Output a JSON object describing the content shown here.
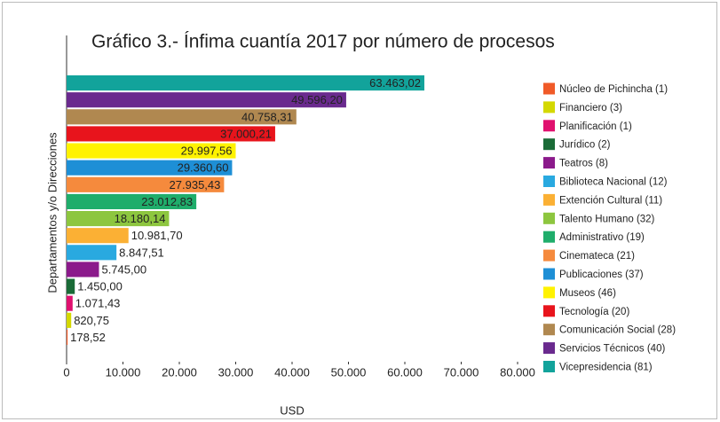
{
  "chart_data": {
    "type": "barh",
    "title": "Gráfico 3.- Ínfima cuantía 2017 por número de procesos",
    "xlabel": "USD",
    "ylabel": "Departamentos y/o Direcciones",
    "categories": [
      "Núcleo de Pichincha (1)",
      "Financiero (3)",
      "Planificación (1)",
      "Jurídico (2)",
      "Teatros (8)",
      "Biblioteca Nacional (12)",
      "Extención Cultural (11)",
      "Talento Humano (32)",
      "Administrativo (19)",
      "Cinemateca (21)",
      "Publicaciones (37)",
      "Museos (46)",
      "Tecnología (20)",
      "Comunicación Social (28)",
      "Servicios Técnicos (40)",
      "Vicepresidencia (81)"
    ],
    "values": [
      178.52,
      820.75,
      1071.43,
      1450,
      5745,
      8847.51,
      10981.7,
      18180.14,
      23012.83,
      27935.43,
      29360.6,
      29997.56,
      37000.21,
      40758.31,
      49596.2,
      63463.02
    ],
    "value_labels": [
      "178,52",
      "820,75",
      "1.071,43",
      "1.450,00",
      "5.745,00",
      "8.847,51",
      "10.981,70",
      "18.180,14",
      "23.012,83",
      "27.935,43",
      "29.360,60",
      "29.997,56",
      "37.000,21",
      "40.758,31",
      "49.596,20",
      "63.463,02"
    ],
    "colors": [
      "#f05a28",
      "#d4d800",
      "#e0116f",
      "#1a6b37",
      "#8b1a8b",
      "#29a9e0",
      "#fbb034",
      "#8dc63f",
      "#1fad6b",
      "#f58a3d",
      "#1e8fd6",
      "#fff200",
      "#e8141c",
      "#b08850",
      "#6a2a8e",
      "#12a39b"
    ],
    "xlim": [
      0,
      80000
    ],
    "xticks": [
      0,
      {
        "value": 10000,
        "label": "10.000"
      },
      {
        "value": 20000,
        "label": "20.000"
      },
      {
        "value": 30000,
        "label": "30.000"
      },
      {
        "value": 40000,
        "label": "40.000"
      },
      {
        "value": 50000,
        "label": "50.000"
      },
      {
        "value": 60000,
        "label": "60.000"
      },
      {
        "value": 70000,
        "label": "70.000"
      },
      {
        "value": 80000,
        "label": "80.000"
      }
    ],
    "legend": "right"
  }
}
